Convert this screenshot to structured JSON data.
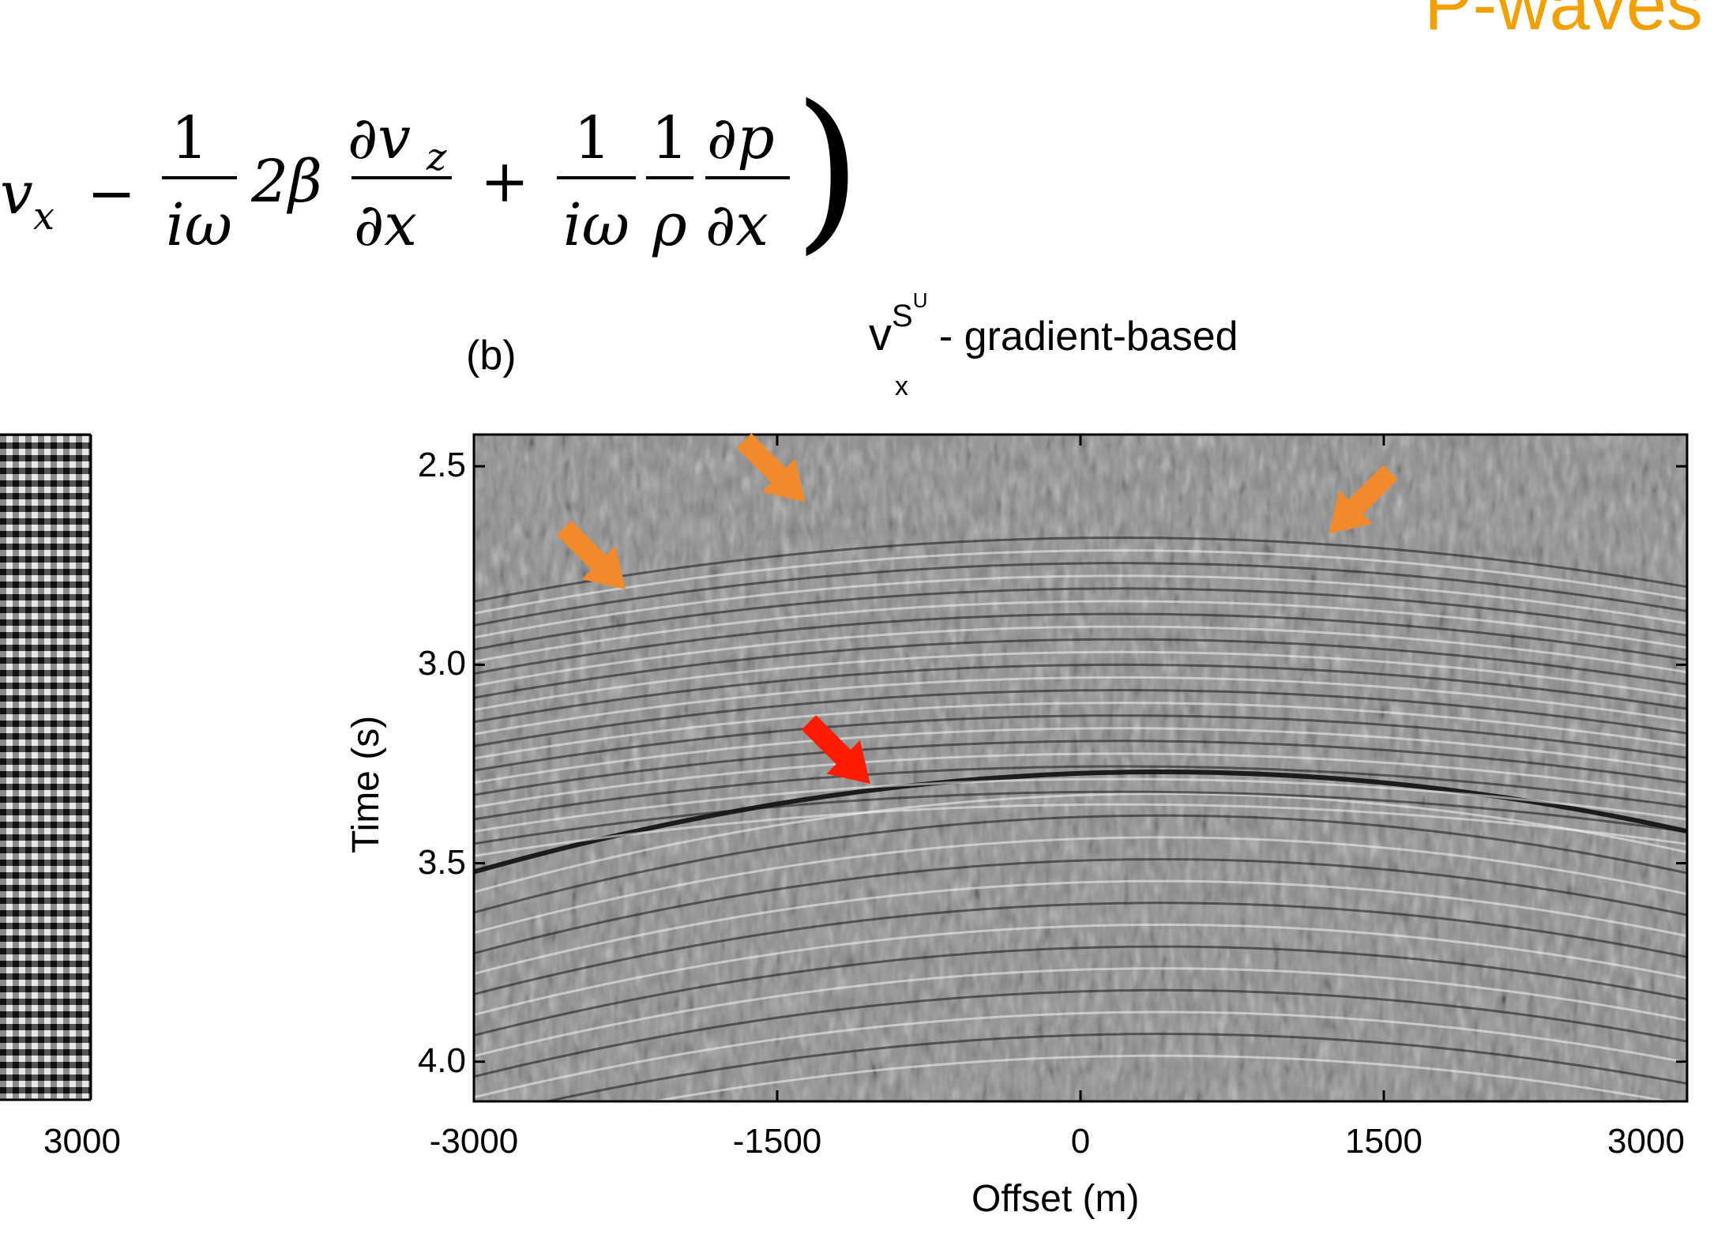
{
  "corner_title": "P-waves",
  "equation": {
    "t1": "v",
    "t1_sub": "x",
    "minus": "−",
    "frac1_num": "1",
    "frac1_den": "iω",
    "coef": "2β",
    "frac2_num": "∂v",
    "frac2_num_sub": "z",
    "frac2_den": "∂x",
    "plus": "+",
    "frac3_num": "1",
    "frac3_den": "iω",
    "frac4_num": "1",
    "frac4_den": "ρ",
    "frac5_num": "∂p",
    "frac5_den": "∂x",
    "paren": ")"
  },
  "panel": {
    "label": "(b)",
    "title_base": "v",
    "title_sup": "S",
    "title_supsup": "U",
    "title_sub": "x",
    "title_rest": " - gradient-based"
  },
  "left_panel": {
    "tick_3000": "3000"
  },
  "chart_data": {
    "type": "heatmap",
    "xlabel": "Offset (m)",
    "ylabel": "Time (s)",
    "xlim": [
      -3000,
      3000
    ],
    "ylim": [
      4.1,
      2.42
    ],
    "x_ticks": [
      "-3000",
      "-1500",
      "0",
      "1500",
      "3000"
    ],
    "x_tick_values": [
      -3000,
      -1500,
      0,
      1500,
      3000
    ],
    "y_ticks": [
      "2.5",
      "3.0",
      "3.5",
      "4.0"
    ],
    "y_tick_values": [
      2.5,
      3.0,
      3.5,
      4.0
    ],
    "colormap": "gray",
    "events": [
      {
        "kind": "hyperbola",
        "apex_offset": 400,
        "apex_time": 3.27
      },
      {
        "kind": "hyperbola",
        "apex_offset": 200,
        "apex_time": 2.68
      }
    ],
    "arrows": [
      {
        "color": "#f08a2c",
        "tip_offset": -2250,
        "tip_time": 2.81
      },
      {
        "color": "#f08a2c",
        "tip_offset": -1360,
        "tip_time": 2.59
      },
      {
        "color": "#f08a2c",
        "tip_offset": 1230,
        "tip_time": 2.67
      },
      {
        "color": "#ff1a00",
        "tip_offset": -1040,
        "tip_time": 3.3
      }
    ]
  }
}
